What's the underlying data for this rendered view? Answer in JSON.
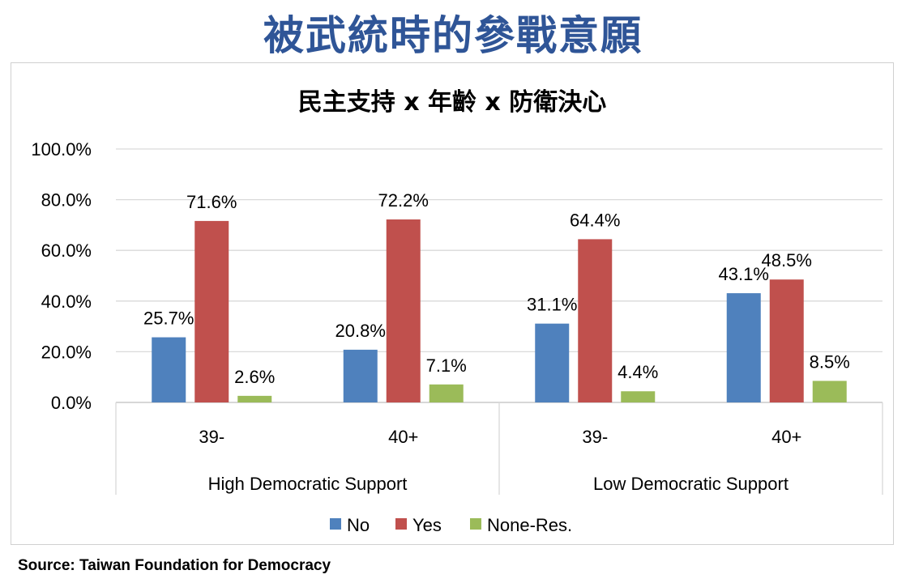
{
  "page": {
    "title": "被武統時的參戰意願",
    "source": "Source: Taiwan Foundation for Democracy"
  },
  "chart_data": {
    "type": "bar",
    "title": "民主支持 x 年齡 x 防衛決心",
    "xlabel": "",
    "ylabel": "",
    "ylim": [
      0,
      100
    ],
    "yticks": [
      "0.0%",
      "20.0%",
      "40.0%",
      "60.0%",
      "80.0%",
      "100.0%"
    ],
    "grid": true,
    "legend_position": "bottom",
    "groups": [
      {
        "label": "High Democratic Support",
        "categories": [
          "39-",
          "40+"
        ]
      },
      {
        "label": "Low Democratic Support",
        "categories": [
          "39-",
          "40+"
        ]
      }
    ],
    "categories": [
      "39-",
      "40+",
      "39-",
      "40+"
    ],
    "series": [
      {
        "name": "No",
        "color": "#4f81bd",
        "values": [
          25.7,
          20.8,
          31.1,
          43.1
        ],
        "labels": [
          "25.7%",
          "20.8%",
          "31.1%",
          "43.1%"
        ]
      },
      {
        "name": "Yes",
        "color": "#c0504d",
        "values": [
          71.6,
          72.2,
          64.4,
          48.5
        ],
        "labels": [
          "71.6%",
          "72.2%",
          "64.4%",
          "48.5%"
        ]
      },
      {
        "name": "None-Res.",
        "color": "#9bbb59",
        "values": [
          2.6,
          7.1,
          4.4,
          8.5
        ],
        "labels": [
          "2.6%",
          "7.1%",
          "4.4%",
          "8.5%"
        ]
      }
    ]
  }
}
